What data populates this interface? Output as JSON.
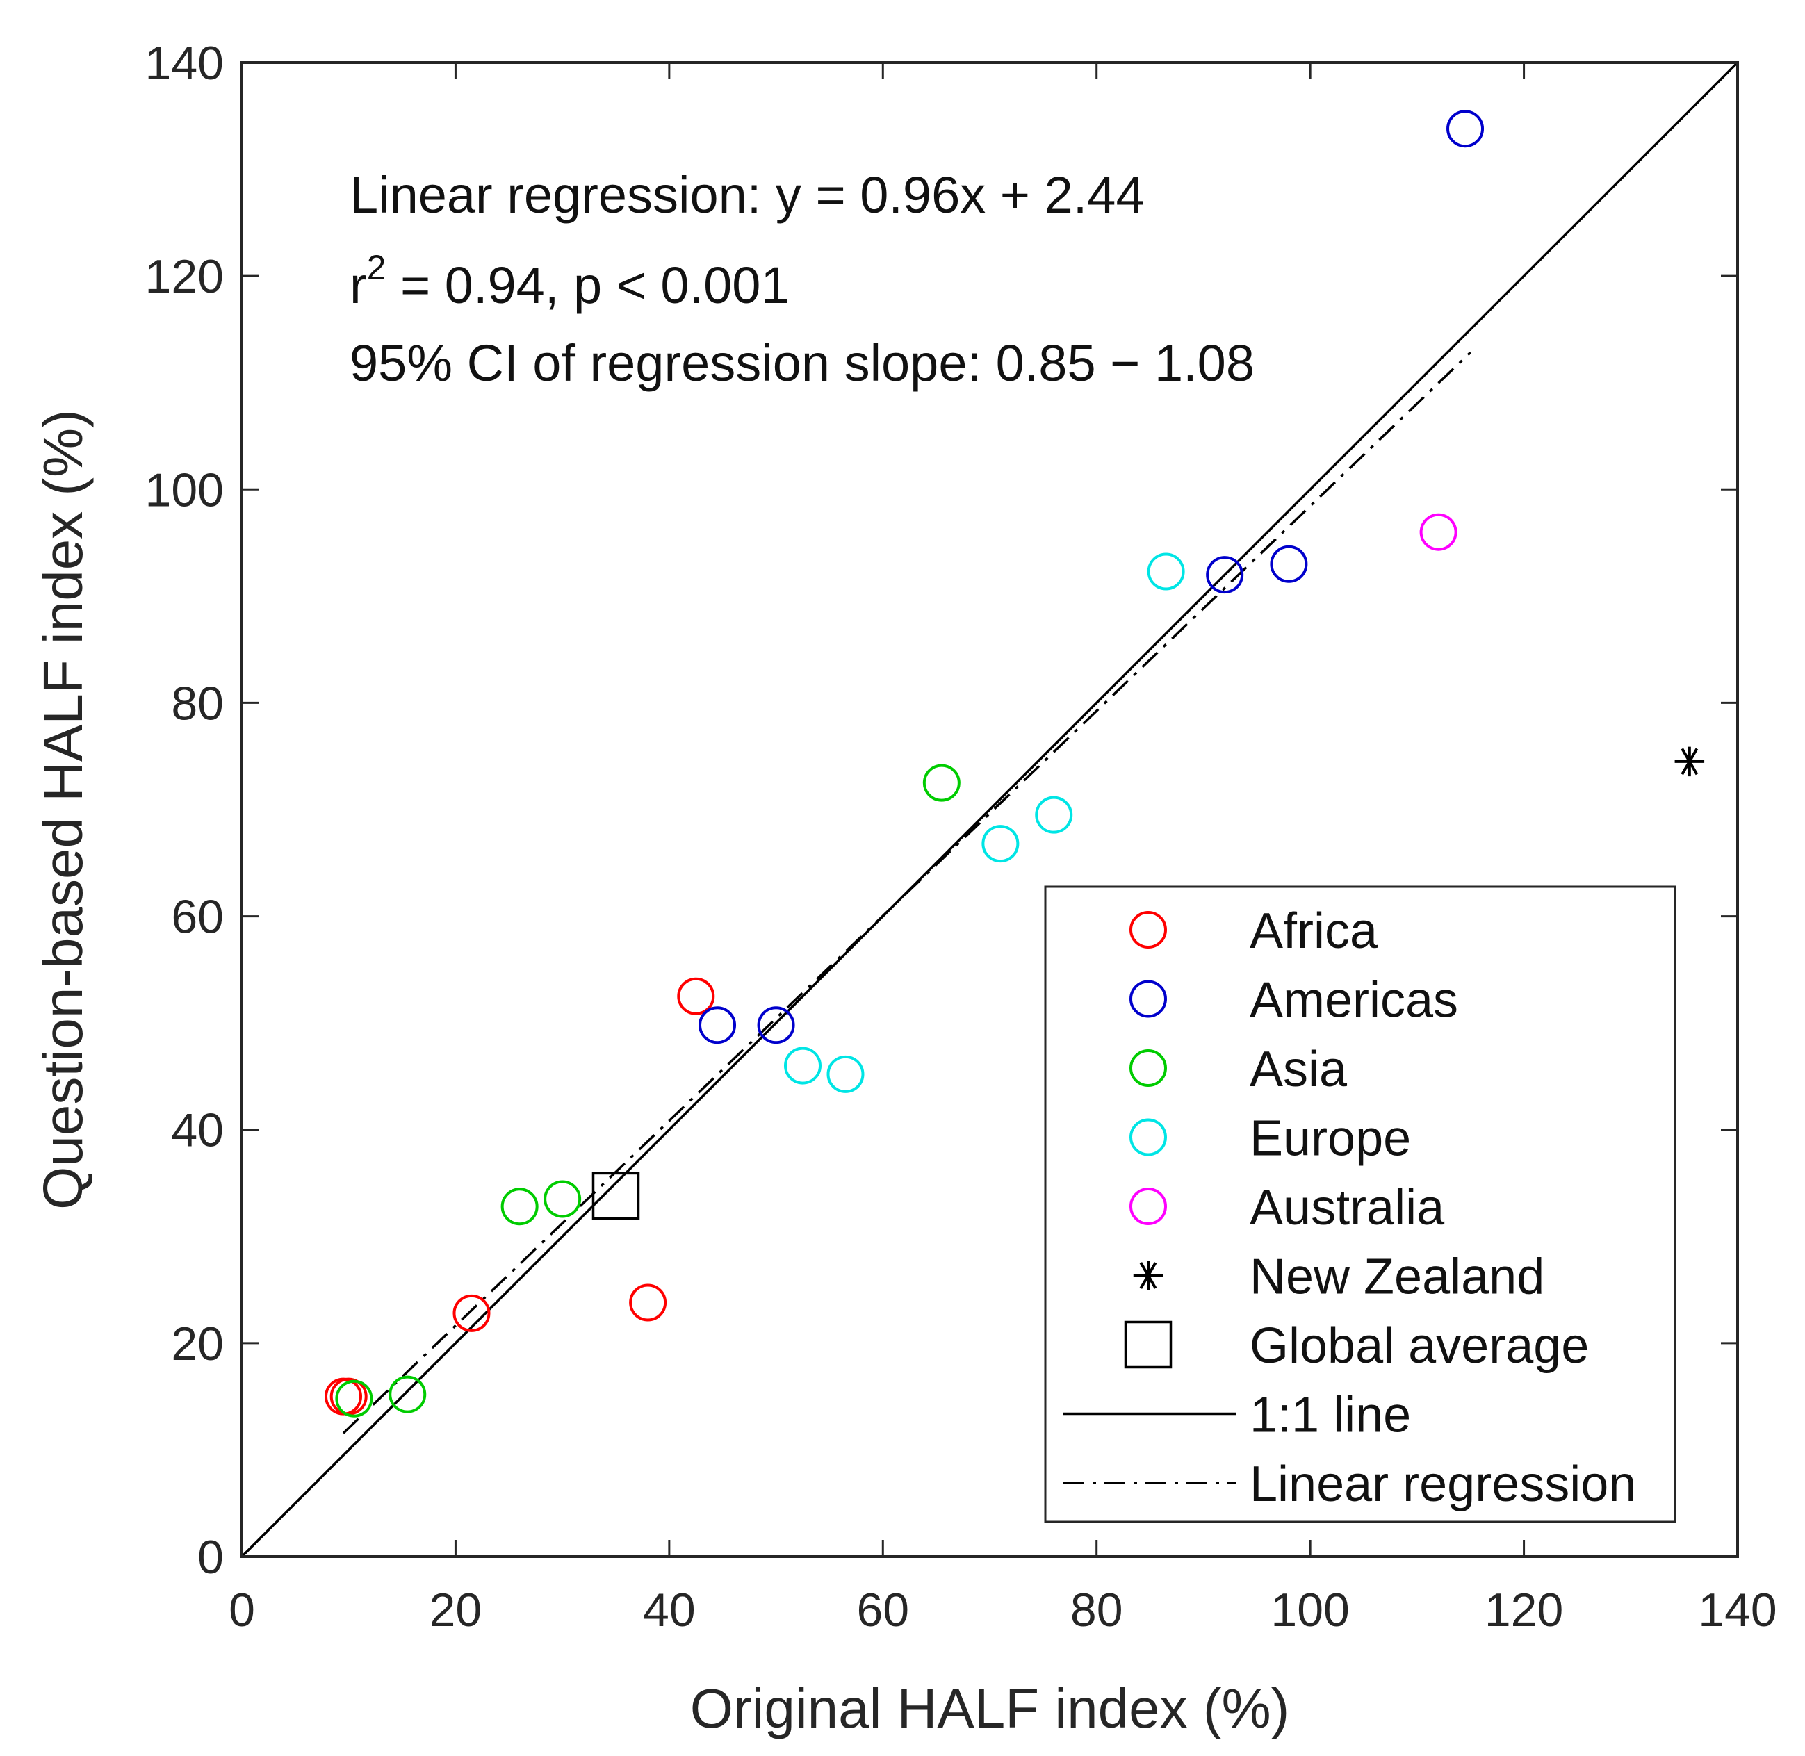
{
  "chart_data": {
    "type": "scatter",
    "xlabel": "Original HALF index (%)",
    "ylabel": "Question-based HALF index (%)",
    "xlim": [
      0,
      140
    ],
    "ylim": [
      0,
      140
    ],
    "xticks": [
      0,
      20,
      40,
      60,
      80,
      100,
      120,
      140
    ],
    "yticks": [
      0,
      20,
      40,
      60,
      80,
      100,
      120,
      140
    ],
    "xtick_labels": [
      "0",
      "20",
      "40",
      "60",
      "80",
      "100",
      "120",
      "140"
    ],
    "ytick_labels": [
      "0",
      "20",
      "40",
      "60",
      "80",
      "100",
      "120",
      "140"
    ],
    "grid": false,
    "annotations": {
      "regression": "Linear regression: y = 0.96x + 2.44",
      "r2_prefix": "r",
      "r2_sup": "2",
      "r2_rest": " = 0.94, p < 0.001",
      "ci": "95% CI of regression slope: 0.85 − 1.08"
    },
    "series": [
      {
        "name": "Africa",
        "marker": "circle",
        "color": "#ff0000",
        "points": [
          [
            9.5,
            15.0
          ],
          [
            10.0,
            15.0
          ],
          [
            21.5,
            22.8
          ],
          [
            38.0,
            23.8
          ],
          [
            42.5,
            52.5
          ]
        ]
      },
      {
        "name": "Americas",
        "marker": "circle",
        "color": "#0000cc",
        "points": [
          [
            44.5,
            49.8
          ],
          [
            50.0,
            49.8
          ],
          [
            92.0,
            92.0
          ],
          [
            98.0,
            93.0
          ],
          [
            114.5,
            133.8
          ]
        ]
      },
      {
        "name": "Asia",
        "marker": "circle",
        "color": "#00cc00",
        "points": [
          [
            10.5,
            14.8
          ],
          [
            15.5,
            15.2
          ],
          [
            26.0,
            32.8
          ],
          [
            30.0,
            33.5
          ],
          [
            65.5,
            72.5
          ]
        ]
      },
      {
        "name": "Europe",
        "marker": "circle",
        "color": "#00e5e5",
        "points": [
          [
            52.5,
            46.0
          ],
          [
            56.5,
            45.2
          ],
          [
            71.0,
            66.8
          ],
          [
            76.0,
            69.5
          ],
          [
            86.5,
            92.3
          ]
        ]
      },
      {
        "name": "Australia",
        "marker": "circle",
        "color": "#ff00ff",
        "points": [
          [
            112.0,
            96.0
          ]
        ]
      },
      {
        "name": "New Zealand",
        "marker": "asterisk",
        "color": "#000000",
        "points": [
          [
            135.5,
            74.5
          ]
        ]
      },
      {
        "name": "Global average",
        "marker": "square",
        "color": "#000000",
        "points": [
          [
            35.0,
            33.8
          ]
        ]
      }
    ],
    "lines": [
      {
        "name": "1:1 line",
        "style": "solid",
        "color": "#000000",
        "x": [
          0,
          140
        ],
        "y": [
          0,
          140
        ]
      },
      {
        "name": "Linear regression",
        "style": "dashdot",
        "color": "#000000",
        "x": [
          9.5,
          115
        ],
        "y": [
          11.56,
          112.84
        ]
      }
    ],
    "legend": {
      "position": "bottom-right",
      "entries": [
        "Africa",
        "Americas",
        "Asia",
        "Europe",
        "Australia",
        "New Zealand",
        "Global average",
        "1:1 line",
        "Linear regression"
      ]
    }
  }
}
